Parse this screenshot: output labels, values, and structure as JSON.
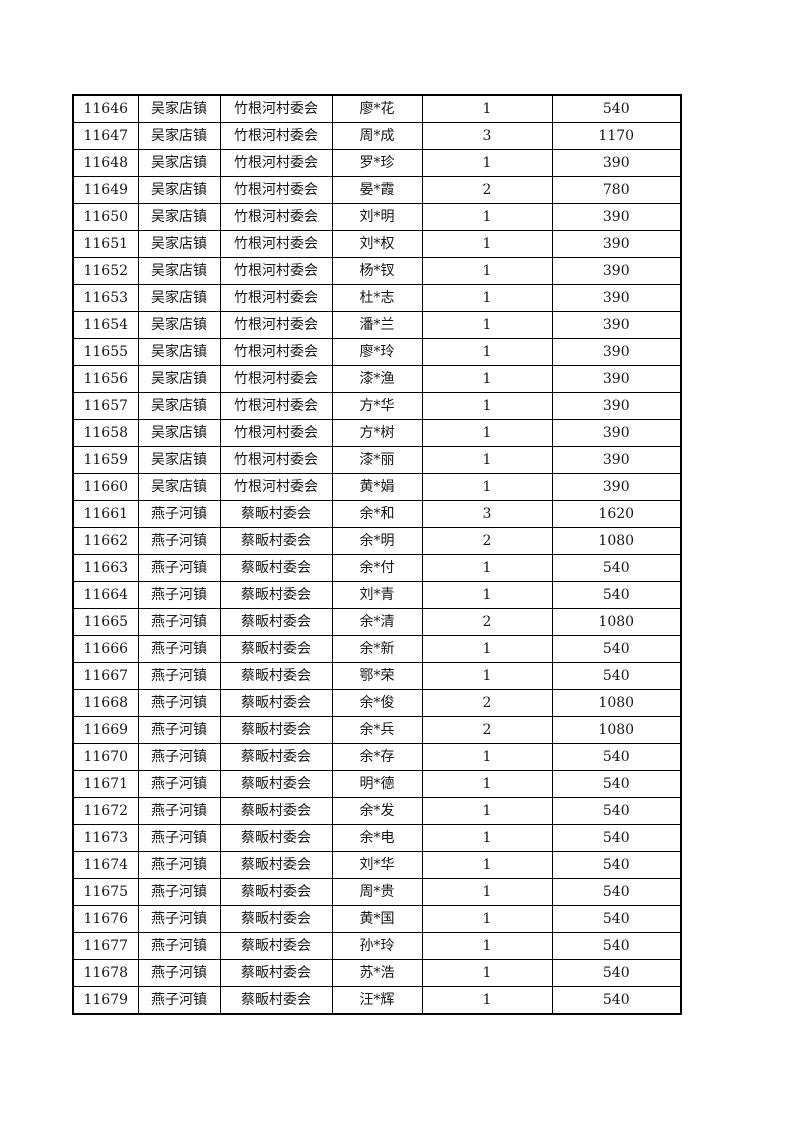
{
  "document": {
    "background_color": "#ffffff",
    "text_color": "#161616",
    "border_color": "#000000"
  },
  "table": {
    "column_keys": [
      "serial-number",
      "town",
      "village-committee",
      "masked-name",
      "count",
      "amount"
    ],
    "rows": [
      [
        "11646",
        "吴家店镇",
        "竹根河村委会",
        "廖*花",
        "1",
        "540"
      ],
      [
        "11647",
        "吴家店镇",
        "竹根河村委会",
        "周*成",
        "3",
        "1170"
      ],
      [
        "11648",
        "吴家店镇",
        "竹根河村委会",
        "罗*珍",
        "1",
        "390"
      ],
      [
        "11649",
        "吴家店镇",
        "竹根河村委会",
        "晏*霞",
        "2",
        "780"
      ],
      [
        "11650",
        "吴家店镇",
        "竹根河村委会",
        "刘*明",
        "1",
        "390"
      ],
      [
        "11651",
        "吴家店镇",
        "竹根河村委会",
        "刘*权",
        "1",
        "390"
      ],
      [
        "11652",
        "吴家店镇",
        "竹根河村委会",
        "杨*钗",
        "1",
        "390"
      ],
      [
        "11653",
        "吴家店镇",
        "竹根河村委会",
        "杜*志",
        "1",
        "390"
      ],
      [
        "11654",
        "吴家店镇",
        "竹根河村委会",
        "潘*兰",
        "1",
        "390"
      ],
      [
        "11655",
        "吴家店镇",
        "竹根河村委会",
        "廖*玲",
        "1",
        "390"
      ],
      [
        "11656",
        "吴家店镇",
        "竹根河村委会",
        "漆*渔",
        "1",
        "390"
      ],
      [
        "11657",
        "吴家店镇",
        "竹根河村委会",
        "方*华",
        "1",
        "390"
      ],
      [
        "11658",
        "吴家店镇",
        "竹根河村委会",
        "方*树",
        "1",
        "390"
      ],
      [
        "11659",
        "吴家店镇",
        "竹根河村委会",
        "漆*丽",
        "1",
        "390"
      ],
      [
        "11660",
        "吴家店镇",
        "竹根河村委会",
        "黄*娟",
        "1",
        "390"
      ],
      [
        "11661",
        "燕子河镇",
        "蔡畈村委会",
        "余*和",
        "3",
        "1620"
      ],
      [
        "11662",
        "燕子河镇",
        "蔡畈村委会",
        "余*明",
        "2",
        "1080"
      ],
      [
        "11663",
        "燕子河镇",
        "蔡畈村委会",
        "余*付",
        "1",
        "540"
      ],
      [
        "11664",
        "燕子河镇",
        "蔡畈村委会",
        "刘*青",
        "1",
        "540"
      ],
      [
        "11665",
        "燕子河镇",
        "蔡畈村委会",
        "余*清",
        "2",
        "1080"
      ],
      [
        "11666",
        "燕子河镇",
        "蔡畈村委会",
        "余*新",
        "1",
        "540"
      ],
      [
        "11667",
        "燕子河镇",
        "蔡畈村委会",
        "鄂*荣",
        "1",
        "540"
      ],
      [
        "11668",
        "燕子河镇",
        "蔡畈村委会",
        "余*俊",
        "2",
        "1080"
      ],
      [
        "11669",
        "燕子河镇",
        "蔡畈村委会",
        "余*兵",
        "2",
        "1080"
      ],
      [
        "11670",
        "燕子河镇",
        "蔡畈村委会",
        "余*存",
        "1",
        "540"
      ],
      [
        "11671",
        "燕子河镇",
        "蔡畈村委会",
        "明*德",
        "1",
        "540"
      ],
      [
        "11672",
        "燕子河镇",
        "蔡畈村委会",
        "余*发",
        "1",
        "540"
      ],
      [
        "11673",
        "燕子河镇",
        "蔡畈村委会",
        "余*电",
        "1",
        "540"
      ],
      [
        "11674",
        "燕子河镇",
        "蔡畈村委会",
        "刘*华",
        "1",
        "540"
      ],
      [
        "11675",
        "燕子河镇",
        "蔡畈村委会",
        "周*贵",
        "1",
        "540"
      ],
      [
        "11676",
        "燕子河镇",
        "蔡畈村委会",
        "黄*国",
        "1",
        "540"
      ],
      [
        "11677",
        "燕子河镇",
        "蔡畈村委会",
        "孙*玲",
        "1",
        "540"
      ],
      [
        "11678",
        "燕子河镇",
        "蔡畈村委会",
        "苏*浩",
        "1",
        "540"
      ],
      [
        "11679",
        "燕子河镇",
        "蔡畈村委会",
        "汪*辉",
        "1",
        "540"
      ]
    ]
  }
}
